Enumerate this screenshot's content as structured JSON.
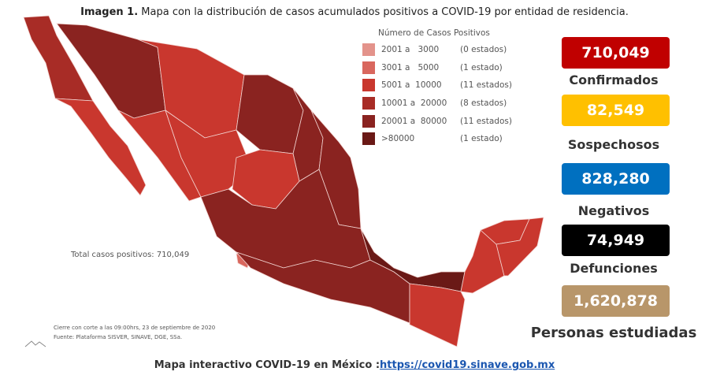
{
  "caption": {
    "label": "Imagen 1.",
    "text": "Mapa con la distribución de casos acumulados positivos a COVID-19 por entidad de residencia."
  },
  "legend": {
    "title": "Número de Casos Positivos",
    "items": [
      {
        "range": "2001 a   3000",
        "count": "(0 estados)",
        "color": "#e3938b"
      },
      {
        "range": "3001 a   5000",
        "count": "(1 estado)",
        "color": "#d9675e"
      },
      {
        "range": "5001 a  10000",
        "count": "(11 estados)",
        "color": "#c9372e"
      },
      {
        "range": "10001 a  20000",
        "count": "(8 estados)",
        "color": "#a82c26"
      },
      {
        "range": "20001 a  80000",
        "count": "(11 estados)",
        "color": "#8a2320"
      },
      {
        "range": ">80000",
        "count": "(1 estado)",
        "color": "#6a1916"
      }
    ]
  },
  "map": {
    "total": "Total casos positivos: 710,049",
    "notes": [
      "Cierre con corte a las 09:00hrs, 23 de septiembre de 2020",
      "Fuente: Plataforma SISVER, SINAVE, DGE, SSa."
    ]
  },
  "stats": [
    {
      "value": "710,049",
      "label": "Confirmados",
      "color": "#c00000",
      "text_color": "#ffffff"
    },
    {
      "value": "82,549",
      "label": "Sospechosos",
      "color": "#ffc000",
      "text_color": "#ffffff"
    },
    {
      "value": "828,280",
      "label": "Negativos",
      "color": "#0070c0",
      "text_color": "#ffffff"
    },
    {
      "value": "74,949",
      "label": "Defunciones",
      "color": "#000000",
      "text_color": "#ffffff"
    },
    {
      "value": "1,620,878",
      "label": "Personas estudiadas",
      "color": "#b8966a",
      "text_color": "#ffffff"
    }
  ],
  "footer": {
    "text": "Mapa interactivo COVID-19 en México :",
    "link": "https://covid19.sinave.gob.mx"
  }
}
